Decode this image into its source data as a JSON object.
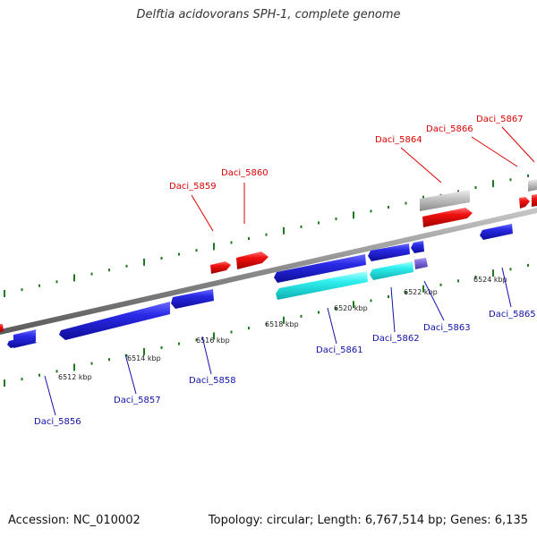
{
  "title": "Delftia acidovorans SPH-1, complete genome",
  "footer": {
    "accession": "Accession: NC_010002",
    "summary": "Topology: circular; Length: 6,767,514 bp; Genes: 6,135"
  },
  "colors": {
    "backbone": "#8a8a8a",
    "forward_gene": "#ee1111",
    "reverse_gene": "#1a1ad6",
    "rna_gene": "#22e5e5",
    "grey_gene": "#b8b8b8",
    "purple_gene": "#7a68d8",
    "tick": "#1f7a1f",
    "label_forward": "#dd0000",
    "label_reverse": "#1111aa"
  },
  "ruler_labels": [
    "6512 kbp",
    "6514 kbp",
    "6516 kbp",
    "6518 kbp",
    "6520 kbp",
    "6522 kbp",
    "6524 kbp"
  ],
  "forward_labels": [
    "Daci_5859",
    "Daci_5860",
    "Daci_5864",
    "Daci_5866",
    "Daci_5867"
  ],
  "reverse_labels": [
    "Daci_5856",
    "Daci_5857",
    "Daci_5858",
    "Daci_5861",
    "Daci_5862",
    "Daci_5863",
    "Daci_5865"
  ]
}
